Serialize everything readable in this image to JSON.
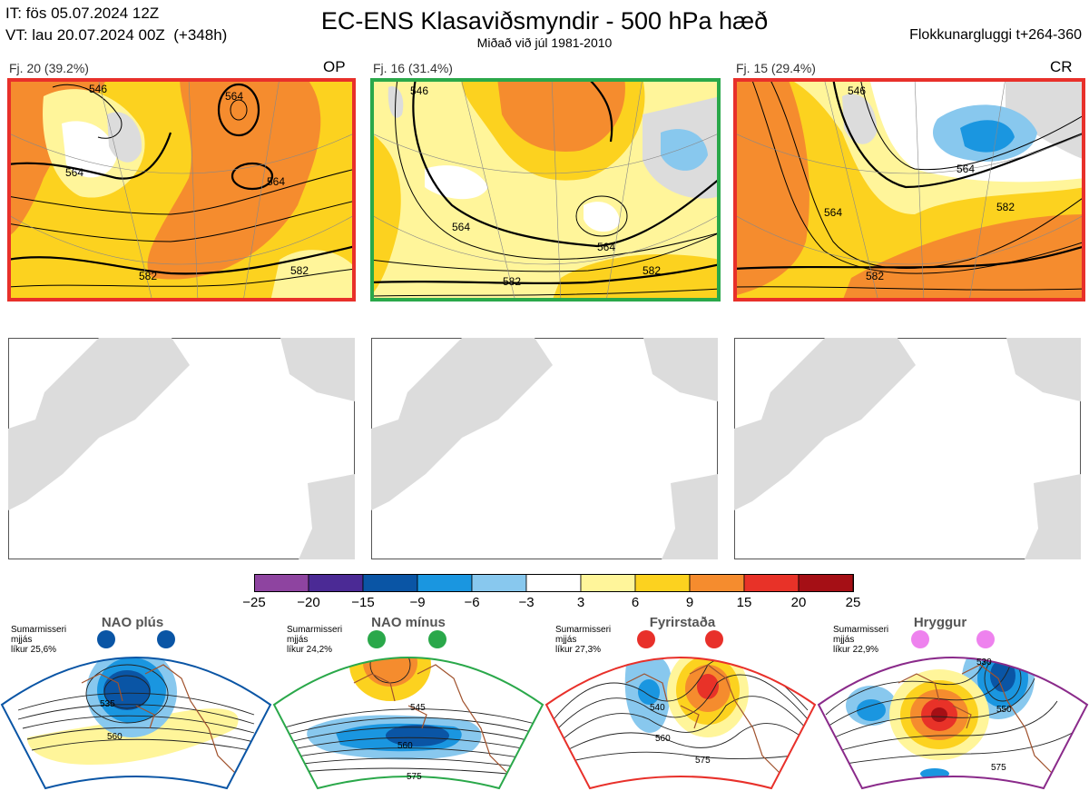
{
  "header": {
    "it_line": "IT: fös 05.07.2024 12Z",
    "vt_line": "VT: lau 20.07.2024 00Z  (+348h)",
    "title": "EC-ENS Klasaviðsmyndir - 500 hPa hæð",
    "subtitle": "Miðað við júl 1981-2010",
    "window": "Flokkunargluggi t+264-360"
  },
  "clusters": [
    {
      "label": "Fj. 20 (39.2%)",
      "tag": "OP",
      "border_color": "#e8302a",
      "contours": [
        "546",
        "564",
        "564",
        "564",
        "582",
        "582"
      ]
    },
    {
      "label": "Fj. 16 (31.4%)",
      "tag": "",
      "border_color": "#2aa84a",
      "contours": [
        "546",
        "564",
        "564",
        "582",
        "582"
      ]
    },
    {
      "label": "Fj. 15 (29.4%)",
      "tag": "CR",
      "border_color": "#e8302a",
      "contours": [
        "546",
        "564",
        "564",
        "582",
        "582"
      ]
    }
  ],
  "colorbar": {
    "ticks": [
      "−25",
      "−20",
      "−15",
      "−9",
      "−6",
      "−3",
      "3",
      "6",
      "9",
      "15",
      "20",
      "25"
    ],
    "colors": [
      "#8e44a0",
      "#4b2a95",
      "#0a55a5",
      "#1a96e0",
      "#88c8ee",
      "#ffffff",
      "#fff59a",
      "#fcd21f",
      "#f58c2e",
      "#e83228",
      "#a50f15"
    ]
  },
  "regimes": [
    {
      "title": "NAO plús",
      "note": "Sumarmisseri\nmjjás\nlíkur 25,6%",
      "dot_color": "#0a55a5",
      "frame_color": "#0a55a5",
      "contours": [
        "535",
        "560"
      ]
    },
    {
      "title": "NAO mínus",
      "note": "Sumarmisseri\nmjjás\nlíkur 24,2%",
      "dot_color": "#2aa84a",
      "frame_color": "#2aa84a",
      "contours": [
        "545",
        "560",
        "575"
      ]
    },
    {
      "title": "Fyrirstaða",
      "note": "Sumarmisseri\nmjjás\nlíkur 27,3%",
      "dot_color": "#e8302a",
      "frame_color": "#e8302a",
      "contours": [
        "540",
        "560",
        "575"
      ]
    },
    {
      "title": "Hryggur",
      "note": "Sumarmisseri\nmjjás\nlíkur 22,9%",
      "dot_color": "#ee82ee",
      "frame_color": "#8a2a8a",
      "contours": [
        "530",
        "550",
        "575"
      ]
    }
  ]
}
